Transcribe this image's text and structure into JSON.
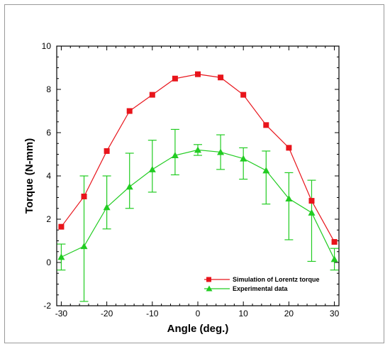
{
  "chart_data": {
    "type": "line",
    "xlabel": "Angle (deg.)",
    "ylabel": "Torque (N-mm)",
    "xlim": [
      -31,
      31
    ],
    "ylim": [
      -2,
      10
    ],
    "x_ticks": [
      -30,
      -20,
      -10,
      0,
      10,
      20,
      30
    ],
    "y_ticks": [
      -2,
      0,
      2,
      4,
      6,
      8,
      10
    ],
    "grid": false,
    "legend_position": "bottom-right",
    "x": [
      -30,
      -25,
      -20,
      -15,
      -10,
      -5,
      0,
      5,
      10,
      15,
      20,
      25,
      30
    ],
    "series": [
      {
        "name": "Simulation of Lorentz torque",
        "color": "#e8141b",
        "marker": "square",
        "values": [
          1.65,
          3.05,
          5.15,
          7.0,
          7.75,
          8.5,
          8.7,
          8.55,
          7.75,
          6.35,
          5.3,
          2.85,
          0.95
        ]
      },
      {
        "name": "Experimental data",
        "color": "#22cc22",
        "marker": "triangle",
        "values": [
          0.25,
          0.75,
          2.55,
          3.5,
          4.3,
          4.95,
          5.2,
          5.1,
          4.8,
          4.25,
          2.95,
          2.3,
          0.15
        ],
        "error_low": [
          -0.35,
          -1.8,
          1.55,
          2.5,
          3.25,
          4.05,
          4.95,
          4.3,
          3.85,
          2.7,
          1.05,
          0.05,
          -0.35
        ],
        "error_high": [
          0.85,
          4.0,
          4.0,
          5.05,
          5.65,
          6.15,
          5.45,
          5.9,
          5.3,
          5.15,
          4.15,
          3.8,
          0.65
        ]
      }
    ]
  }
}
